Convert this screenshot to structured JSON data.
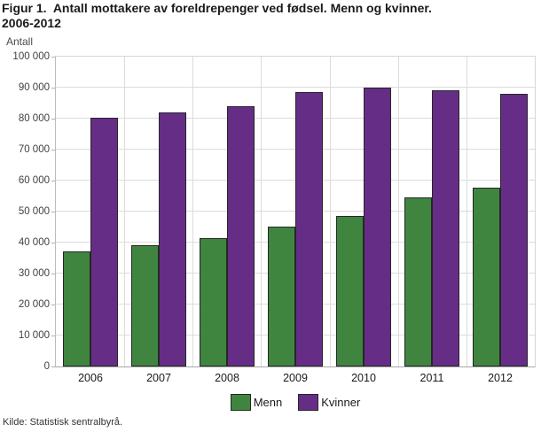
{
  "header": {
    "title_line1": "Figur 1.  Antall mottakere av foreldrepenger ved fødsel. Menn og kvinner.",
    "title_line2": "2006-2012"
  },
  "chart_data": {
    "type": "bar",
    "title": "Figur 1. Antall mottakere av foreldrepenger ved fødsel. Menn og kvinner. 2006-2012",
    "xlabel": "",
    "ylabel": "Antall",
    "categories": [
      "2006",
      "2007",
      "2008",
      "2009",
      "2010",
      "2011",
      "2012"
    ],
    "series": [
      {
        "name": "Menn",
        "color": "#3F8540",
        "values": [
          37000,
          39000,
          41300,
          45100,
          48600,
          54600,
          57800
        ]
      },
      {
        "name": "Kvinner",
        "color": "#662D87",
        "values": [
          80300,
          81900,
          84000,
          88600,
          90100,
          89000,
          88100
        ]
      }
    ],
    "ylim": [
      0,
      100000
    ],
    "ytick_step": 10000,
    "ytick_labels": [
      "0",
      "10 000",
      "20 000",
      "30 000",
      "40 000",
      "50 000",
      "60 000",
      "70 000",
      "80 000",
      "90 000",
      "100 000"
    ],
    "grid": true,
    "legend_position": "bottom"
  },
  "footer": {
    "source": "Kilde: Statistisk sentralbyrå."
  }
}
